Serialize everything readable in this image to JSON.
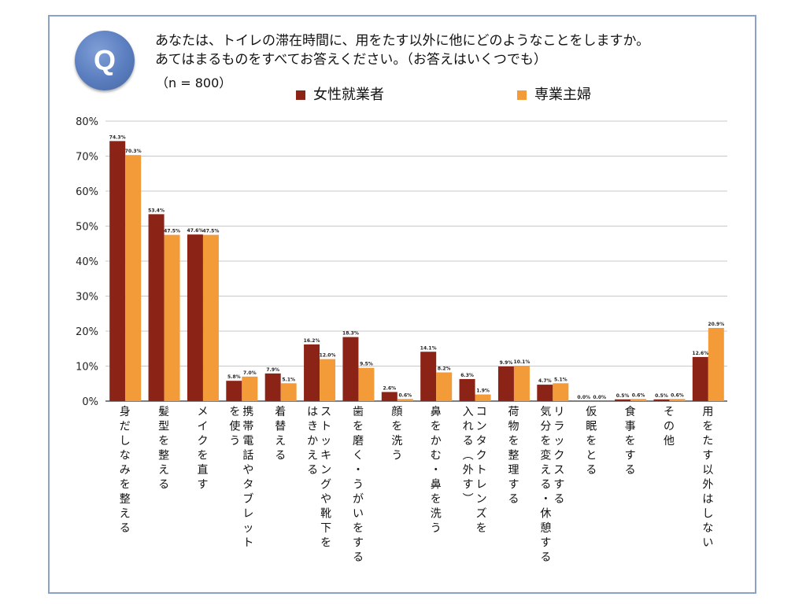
{
  "question": {
    "badge": "Q",
    "line1": "あなたは、トイレの滞在時間に、用をたす以外に他にどのようなことをしますか。",
    "line2": "あてはまるものをすべてお答えください。（お答えはいくつでも）",
    "sample": "（n = 800）"
  },
  "chart_data": {
    "type": "bar",
    "title": "",
    "xlabel": "",
    "ylabel": "",
    "ylim": [
      0,
      80
    ],
    "yticks": [
      "0%",
      "10%",
      "20%",
      "30%",
      "40%",
      "50%",
      "60%",
      "70%",
      "80%"
    ],
    "value_suffix": "%",
    "legend_position": "top",
    "categories": [
      [
        "身だしなみを整える"
      ],
      [
        "髪型を整える"
      ],
      [
        "メイクを直す"
      ],
      [
        "携帯電話やタブレット",
        "を使う"
      ],
      [
        "着替える"
      ],
      [
        "ストッキングや靴下を",
        "はきかえる"
      ],
      [
        "歯を磨く・うがいをする"
      ],
      [
        "顔を洗う"
      ],
      [
        "鼻をかむ・鼻を洗う"
      ],
      [
        "コンタクトレンズを",
        "入れる（外す）"
      ],
      [
        "荷物を整理する"
      ],
      [
        "リラックスする",
        "気分を変える・休憩する"
      ],
      [
        "仮眠をとる"
      ],
      [
        "食事をする"
      ],
      [
        "その他"
      ],
      [
        "用をたす以外はしない"
      ]
    ],
    "series": [
      {
        "name": "女性就業者",
        "color": "#8b2317",
        "values": [
          74.3,
          53.4,
          47.6,
          5.8,
          7.9,
          16.2,
          18.3,
          2.6,
          14.1,
          6.3,
          9.9,
          4.7,
          0.0,
          0.5,
          0.5,
          12.6
        ]
      },
      {
        "name": "専業主婦",
        "color": "#f29b38",
        "values": [
          70.3,
          47.5,
          47.5,
          7.0,
          5.1,
          12.0,
          9.5,
          0.6,
          8.2,
          1.9,
          10.1,
          5.1,
          0.0,
          0.6,
          0.6,
          20.9
        ]
      }
    ]
  }
}
